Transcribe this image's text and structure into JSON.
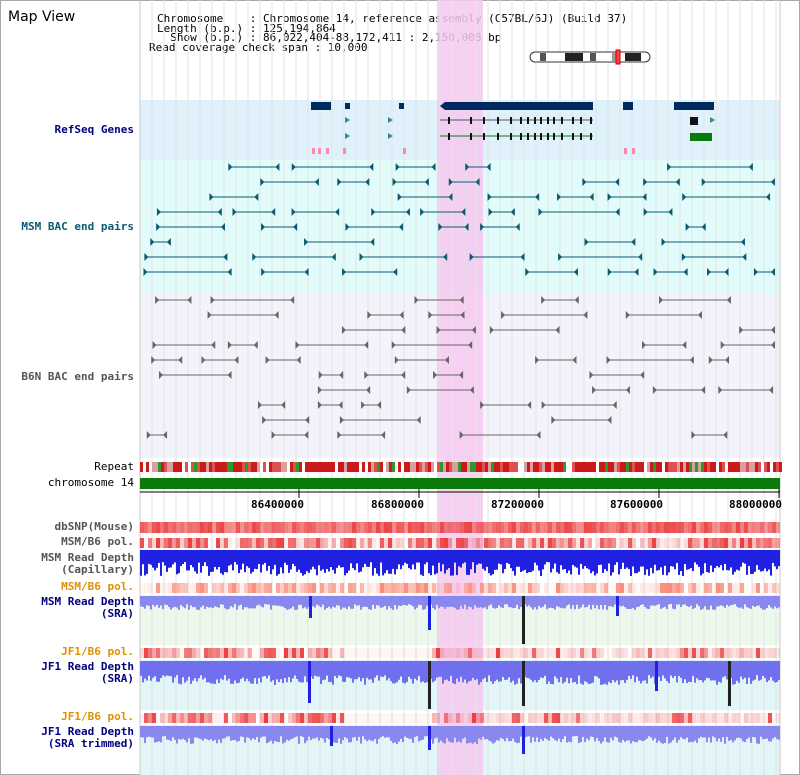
{
  "panel_title": "Map View",
  "header": {
    "chromosome": "Chromosome    : Chromosome 14, reference assembly (C57BL/6J) (Build 37)",
    "length": "Length (b.p.) : 125,194,864",
    "show": "  Show (b.p.) : 86,022,404-88,172,411 : 2,150,008 bp",
    "read_span": "Read coverage check span : 10,000"
  },
  "tracks": {
    "refseq": "RefSeq Genes",
    "msm_bac": "MSM BAC end pairs",
    "b6n_bac": "B6N BAC end pairs",
    "repeat": "Repeat",
    "chromosome": "chromosome 14",
    "dbsnp": "dbSNP(Mouse)",
    "msm_b6_pol_1": "MSM/B6 pol.",
    "msm_read_depth_cap_1": "MSM Read Depth",
    "msm_read_depth_cap_2": "(Capillary)",
    "msm_b6_pol_2": "MSM/B6 pol.",
    "msm_read_depth_sra_1": "MSM Read Depth",
    "msm_read_depth_sra_2": "(SRA)",
    "jf1_b6_pol_1": "JF1/B6 pol.",
    "jf1_read_depth_sra_1": "JF1 Read Depth",
    "jf1_read_depth_sra_2": "(SRA)",
    "jf1_b6_pol_2": "JF1/B6 pol.",
    "jf1_read_depth_trim_1": "JF1 Read Depth",
    "jf1_read_depth_trim_2": "(SRA trimmed)"
  },
  "axis_ticks": [
    "86400000",
    "86800000",
    "87200000",
    "87600000",
    "88000000"
  ],
  "colors": {
    "refseq_bg": "#dff2fb",
    "msm_bg": "#e2fbfb",
    "b6n_bg": "#f3f3fb",
    "highlight": "#f6c8f0",
    "gene": "#002a5f",
    "bac_msm": "#0b5a70",
    "bac_b6n": "#666666",
    "chromosome": "#0a7a0a",
    "depth_blue": "#2020e0",
    "depth_light": "#8888ee"
  }
}
